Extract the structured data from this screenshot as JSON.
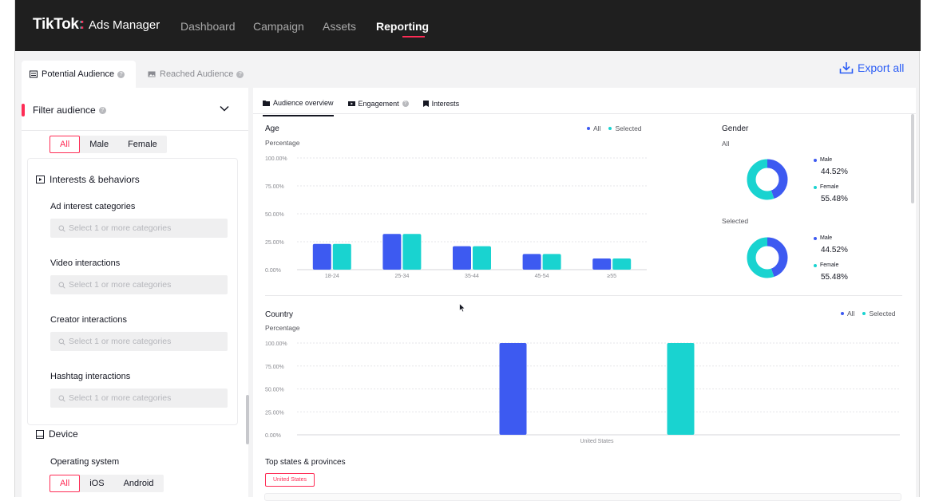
{
  "nav": {
    "logo": "TikTok",
    "logo_sub": "Ads Manager",
    "items": [
      "Dashboard",
      "Campaign",
      "Assets",
      "Reporting"
    ],
    "active": "Reporting"
  },
  "audience_tabs": {
    "potential": "Potential Audience",
    "reached": "Reached Audience"
  },
  "export_label": "Export all",
  "filter": {
    "title": "Filter audience",
    "gender_options": [
      "All",
      "Male",
      "Female"
    ],
    "interests_title": "Interests & behaviors",
    "ad_interest_label": "Ad interest categories",
    "video_label": "Video interactions",
    "creator_label": "Creator interactions",
    "hashtag_label": "Hashtag interactions",
    "placeholder": "Select 1 or more categories",
    "device_title": "Device",
    "os_label": "Operating system",
    "os_options": [
      "All",
      "iOS",
      "Android"
    ]
  },
  "overview_tabs": [
    "Audience overview",
    "Engagement",
    "Interests"
  ],
  "age_chart": {
    "title": "Age",
    "subtitle": "Percentage",
    "legend_all": "All",
    "legend_selected": "Selected",
    "y_ticks": [
      "100.00%",
      "75.00%",
      "50.00%",
      "25.00%",
      "0.00%"
    ]
  },
  "gender_chart": {
    "title": "Gender",
    "all_label": "All",
    "selected_label": "Selected",
    "male_label": "Male",
    "female_label": "Female",
    "male_value": "44.52%",
    "female_value": "55.48%"
  },
  "country_chart": {
    "title": "Country",
    "subtitle": "Percentage",
    "legend_all": "All",
    "legend_selected": "Selected",
    "y_ticks": [
      "100.00%",
      "75.00%",
      "50.00%",
      "25.00%",
      "0.00%"
    ]
  },
  "top_states": {
    "title": "Top states & provinces",
    "chip": "United States"
  },
  "colors": {
    "all": "#3d5af1",
    "selected": "#19d3d0",
    "accent": "#fe2c55",
    "link": "#2b5df5"
  },
  "chart_data": [
    {
      "type": "bar",
      "categories": [
        "18-24",
        "25-34",
        "35-44",
        "45-54",
        "≥55"
      ],
      "series": [
        {
          "name": "All",
          "values": [
            23,
            32,
            21,
            14,
            10
          ]
        },
        {
          "name": "Selected",
          "values": [
            23,
            32,
            21,
            14,
            10
          ]
        }
      ],
      "title": "Age",
      "ylabel": "Percentage",
      "ylim": [
        0,
        100
      ],
      "grid": true,
      "legend": "top-right"
    },
    {
      "type": "pie",
      "title": "Gender",
      "subtitle": "All",
      "labels": [
        "Male",
        "Female"
      ],
      "values": [
        44.52,
        55.48
      ]
    },
    {
      "type": "pie",
      "title": "Gender",
      "subtitle": "Selected",
      "labels": [
        "Male",
        "Female"
      ],
      "values": [
        44.52,
        55.48
      ]
    },
    {
      "type": "bar",
      "categories": [
        "United States"
      ],
      "series": [
        {
          "name": "All",
          "values": [
            100
          ]
        },
        {
          "name": "Selected",
          "values": [
            100
          ]
        }
      ],
      "title": "Country",
      "ylabel": "Percentage",
      "ylim": [
        0,
        100
      ],
      "grid": true,
      "legend": "top-right"
    }
  ]
}
